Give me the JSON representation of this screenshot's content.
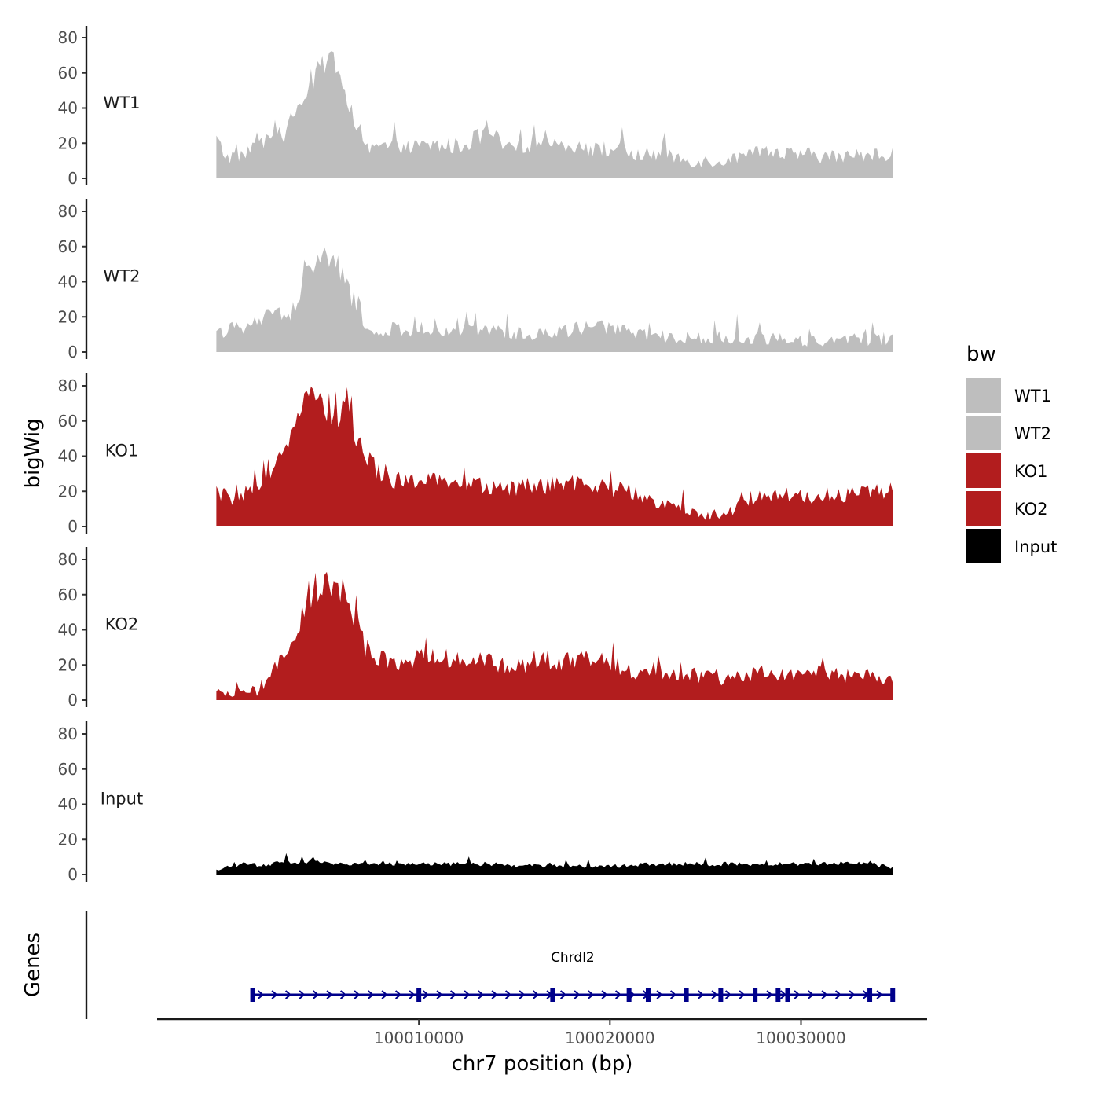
{
  "chart_data": {
    "type": "area",
    "title": "",
    "xlabel": "chr7 position (bp)",
    "ylabel": "bigWig",
    "genes_label": "Genes",
    "xlim": [
      99996300,
      100036600
    ],
    "ylim": [
      0,
      88
    ],
    "x_ticks": [
      100010000,
      100020000,
      100030000
    ],
    "x_tick_labels": [
      "100010000",
      "100020000",
      "100030000"
    ],
    "y_ticks": [
      0,
      20,
      40,
      60,
      80
    ],
    "y_tick_labels": [
      "0",
      "20",
      "40",
      "60",
      "80"
    ],
    "signal_range": [
      99999400,
      100034800
    ],
    "legend": {
      "title": "bw",
      "position": "right",
      "entries": [
        {
          "label": "WT1",
          "color": "#bebebe"
        },
        {
          "label": "WT2",
          "color": "#bebebe"
        },
        {
          "label": "KO1",
          "color": "#b21d1e"
        },
        {
          "label": "KO2",
          "color": "#b21d1e"
        },
        {
          "label": "Input",
          "color": "#000000"
        }
      ]
    },
    "series": [
      {
        "name": "WT1",
        "color": "#bebebe",
        "anchors": [
          [
            0,
            22
          ],
          [
            1.5,
            12
          ],
          [
            3,
            13
          ],
          [
            5,
            15
          ],
          [
            6,
            26
          ],
          [
            7,
            16
          ],
          [
            9,
            30
          ],
          [
            10,
            24
          ],
          [
            11,
            32
          ],
          [
            12,
            42
          ],
          [
            13,
            38
          ],
          [
            14,
            56
          ],
          [
            15,
            62
          ],
          [
            16,
            65
          ],
          [
            17,
            74
          ],
          [
            18,
            60
          ],
          [
            19,
            50
          ],
          [
            20,
            37
          ],
          [
            21,
            24
          ],
          [
            22,
            16
          ],
          [
            25,
            18
          ],
          [
            28,
            17
          ],
          [
            32,
            19
          ],
          [
            36,
            18
          ],
          [
            39,
            24
          ],
          [
            40,
            28
          ],
          [
            41,
            24
          ],
          [
            43,
            16
          ],
          [
            47,
            20
          ],
          [
            52,
            20
          ],
          [
            56,
            16
          ],
          [
            59,
            17
          ],
          [
            62,
            13
          ],
          [
            66,
            14
          ],
          [
            70,
            10
          ],
          [
            75,
            10
          ],
          [
            80,
            14
          ],
          [
            85,
            14
          ],
          [
            89,
            13
          ],
          [
            93,
            12
          ],
          [
            98,
            14
          ],
          [
            100,
            14
          ]
        ]
      },
      {
        "name": "WT2",
        "color": "#bebebe",
        "anchors": [
          [
            0,
            10
          ],
          [
            2,
            14
          ],
          [
            4,
            12
          ],
          [
            6,
            18
          ],
          [
            8,
            20
          ],
          [
            10,
            22
          ],
          [
            12,
            24
          ],
          [
            13,
            45
          ],
          [
            14,
            50
          ],
          [
            15,
            55
          ],
          [
            16,
            48
          ],
          [
            17,
            55
          ],
          [
            18,
            48
          ],
          [
            19,
            40
          ],
          [
            20,
            32
          ],
          [
            21,
            26
          ],
          [
            22,
            14
          ],
          [
            24,
            10
          ],
          [
            27,
            12
          ],
          [
            30,
            11
          ],
          [
            34,
            13
          ],
          [
            38,
            13
          ],
          [
            42,
            12
          ],
          [
            46,
            10
          ],
          [
            50,
            11
          ],
          [
            55,
            15
          ],
          [
            60,
            12
          ],
          [
            64,
            9
          ],
          [
            69,
            8
          ],
          [
            74,
            7
          ],
          [
            79,
            8
          ],
          [
            84,
            8
          ],
          [
            88,
            6
          ],
          [
            92,
            7
          ],
          [
            96,
            7
          ],
          [
            100,
            8
          ]
        ]
      },
      {
        "name": "KO1",
        "color": "#b21d1e",
        "anchors": [
          [
            0,
            20
          ],
          [
            2,
            16
          ],
          [
            4,
            18
          ],
          [
            6,
            20
          ],
          [
            8,
            26
          ],
          [
            9,
            36
          ],
          [
            10,
            48
          ],
          [
            11,
            56
          ],
          [
            12,
            64
          ],
          [
            13,
            74
          ],
          [
            14,
            72
          ],
          [
            15,
            70
          ],
          [
            16,
            66
          ],
          [
            17,
            68
          ],
          [
            18,
            66
          ],
          [
            19,
            68
          ],
          [
            20,
            60
          ],
          [
            21,
            48
          ],
          [
            22,
            40
          ],
          [
            24,
            32
          ],
          [
            27,
            26
          ],
          [
            31,
            26
          ],
          [
            36,
            24
          ],
          [
            40,
            24
          ],
          [
            45,
            22
          ],
          [
            50,
            24
          ],
          [
            55,
            24
          ],
          [
            60,
            21
          ],
          [
            64,
            16
          ],
          [
            67,
            12
          ],
          [
            70,
            8
          ],
          [
            73,
            7
          ],
          [
            76,
            8
          ],
          [
            80,
            18
          ],
          [
            84,
            18
          ],
          [
            88,
            17
          ],
          [
            92,
            18
          ],
          [
            96,
            20
          ],
          [
            100,
            20
          ]
        ]
      },
      {
        "name": "KO2",
        "color": "#b21d1e",
        "anchors": [
          [
            0,
            3
          ],
          [
            3,
            4
          ],
          [
            6,
            5
          ],
          [
            8,
            14
          ],
          [
            10,
            24
          ],
          [
            12,
            34
          ],
          [
            13,
            52
          ],
          [
            14,
            62
          ],
          [
            15,
            66
          ],
          [
            16,
            64
          ],
          [
            17,
            64
          ],
          [
            18,
            62
          ],
          [
            19,
            60
          ],
          [
            20,
            50
          ],
          [
            21,
            40
          ],
          [
            22,
            30
          ],
          [
            24,
            24
          ],
          [
            27,
            22
          ],
          [
            31,
            24
          ],
          [
            36,
            24
          ],
          [
            40,
            22
          ],
          [
            44,
            18
          ],
          [
            48,
            22
          ],
          [
            52,
            22
          ],
          [
            56,
            24
          ],
          [
            59,
            20
          ],
          [
            63,
            14
          ],
          [
            67,
            16
          ],
          [
            71,
            14
          ],
          [
            75,
            12
          ],
          [
            80,
            16
          ],
          [
            84,
            14
          ],
          [
            88,
            16
          ],
          [
            92,
            14
          ],
          [
            96,
            14
          ],
          [
            100,
            10
          ]
        ]
      },
      {
        "name": "Input",
        "color": "#000000",
        "anchors": [
          [
            0,
            2
          ],
          [
            2,
            5
          ],
          [
            4,
            6
          ],
          [
            6,
            5
          ],
          [
            10,
            7
          ],
          [
            15,
            7
          ],
          [
            20,
            6
          ],
          [
            25,
            6
          ],
          [
            30,
            6
          ],
          [
            35,
            6
          ],
          [
            40,
            6
          ],
          [
            45,
            5
          ],
          [
            50,
            5
          ],
          [
            55,
            5
          ],
          [
            60,
            5
          ],
          [
            65,
            6
          ],
          [
            70,
            6
          ],
          [
            75,
            6
          ],
          [
            80,
            6
          ],
          [
            85,
            6
          ],
          [
            90,
            6
          ],
          [
            95,
            7
          ],
          [
            100,
            4
          ]
        ]
      }
    ],
    "gene": {
      "name": "Chrdl2",
      "strand": "+",
      "color": "#00008b",
      "start": 100001300,
      "end": 100034800,
      "exons": [
        100001300,
        100010000,
        100017000,
        100021000,
        100022000,
        100024000,
        100025800,
        100027600,
        100028800,
        100029300,
        100033600,
        100034800
      ]
    }
  }
}
